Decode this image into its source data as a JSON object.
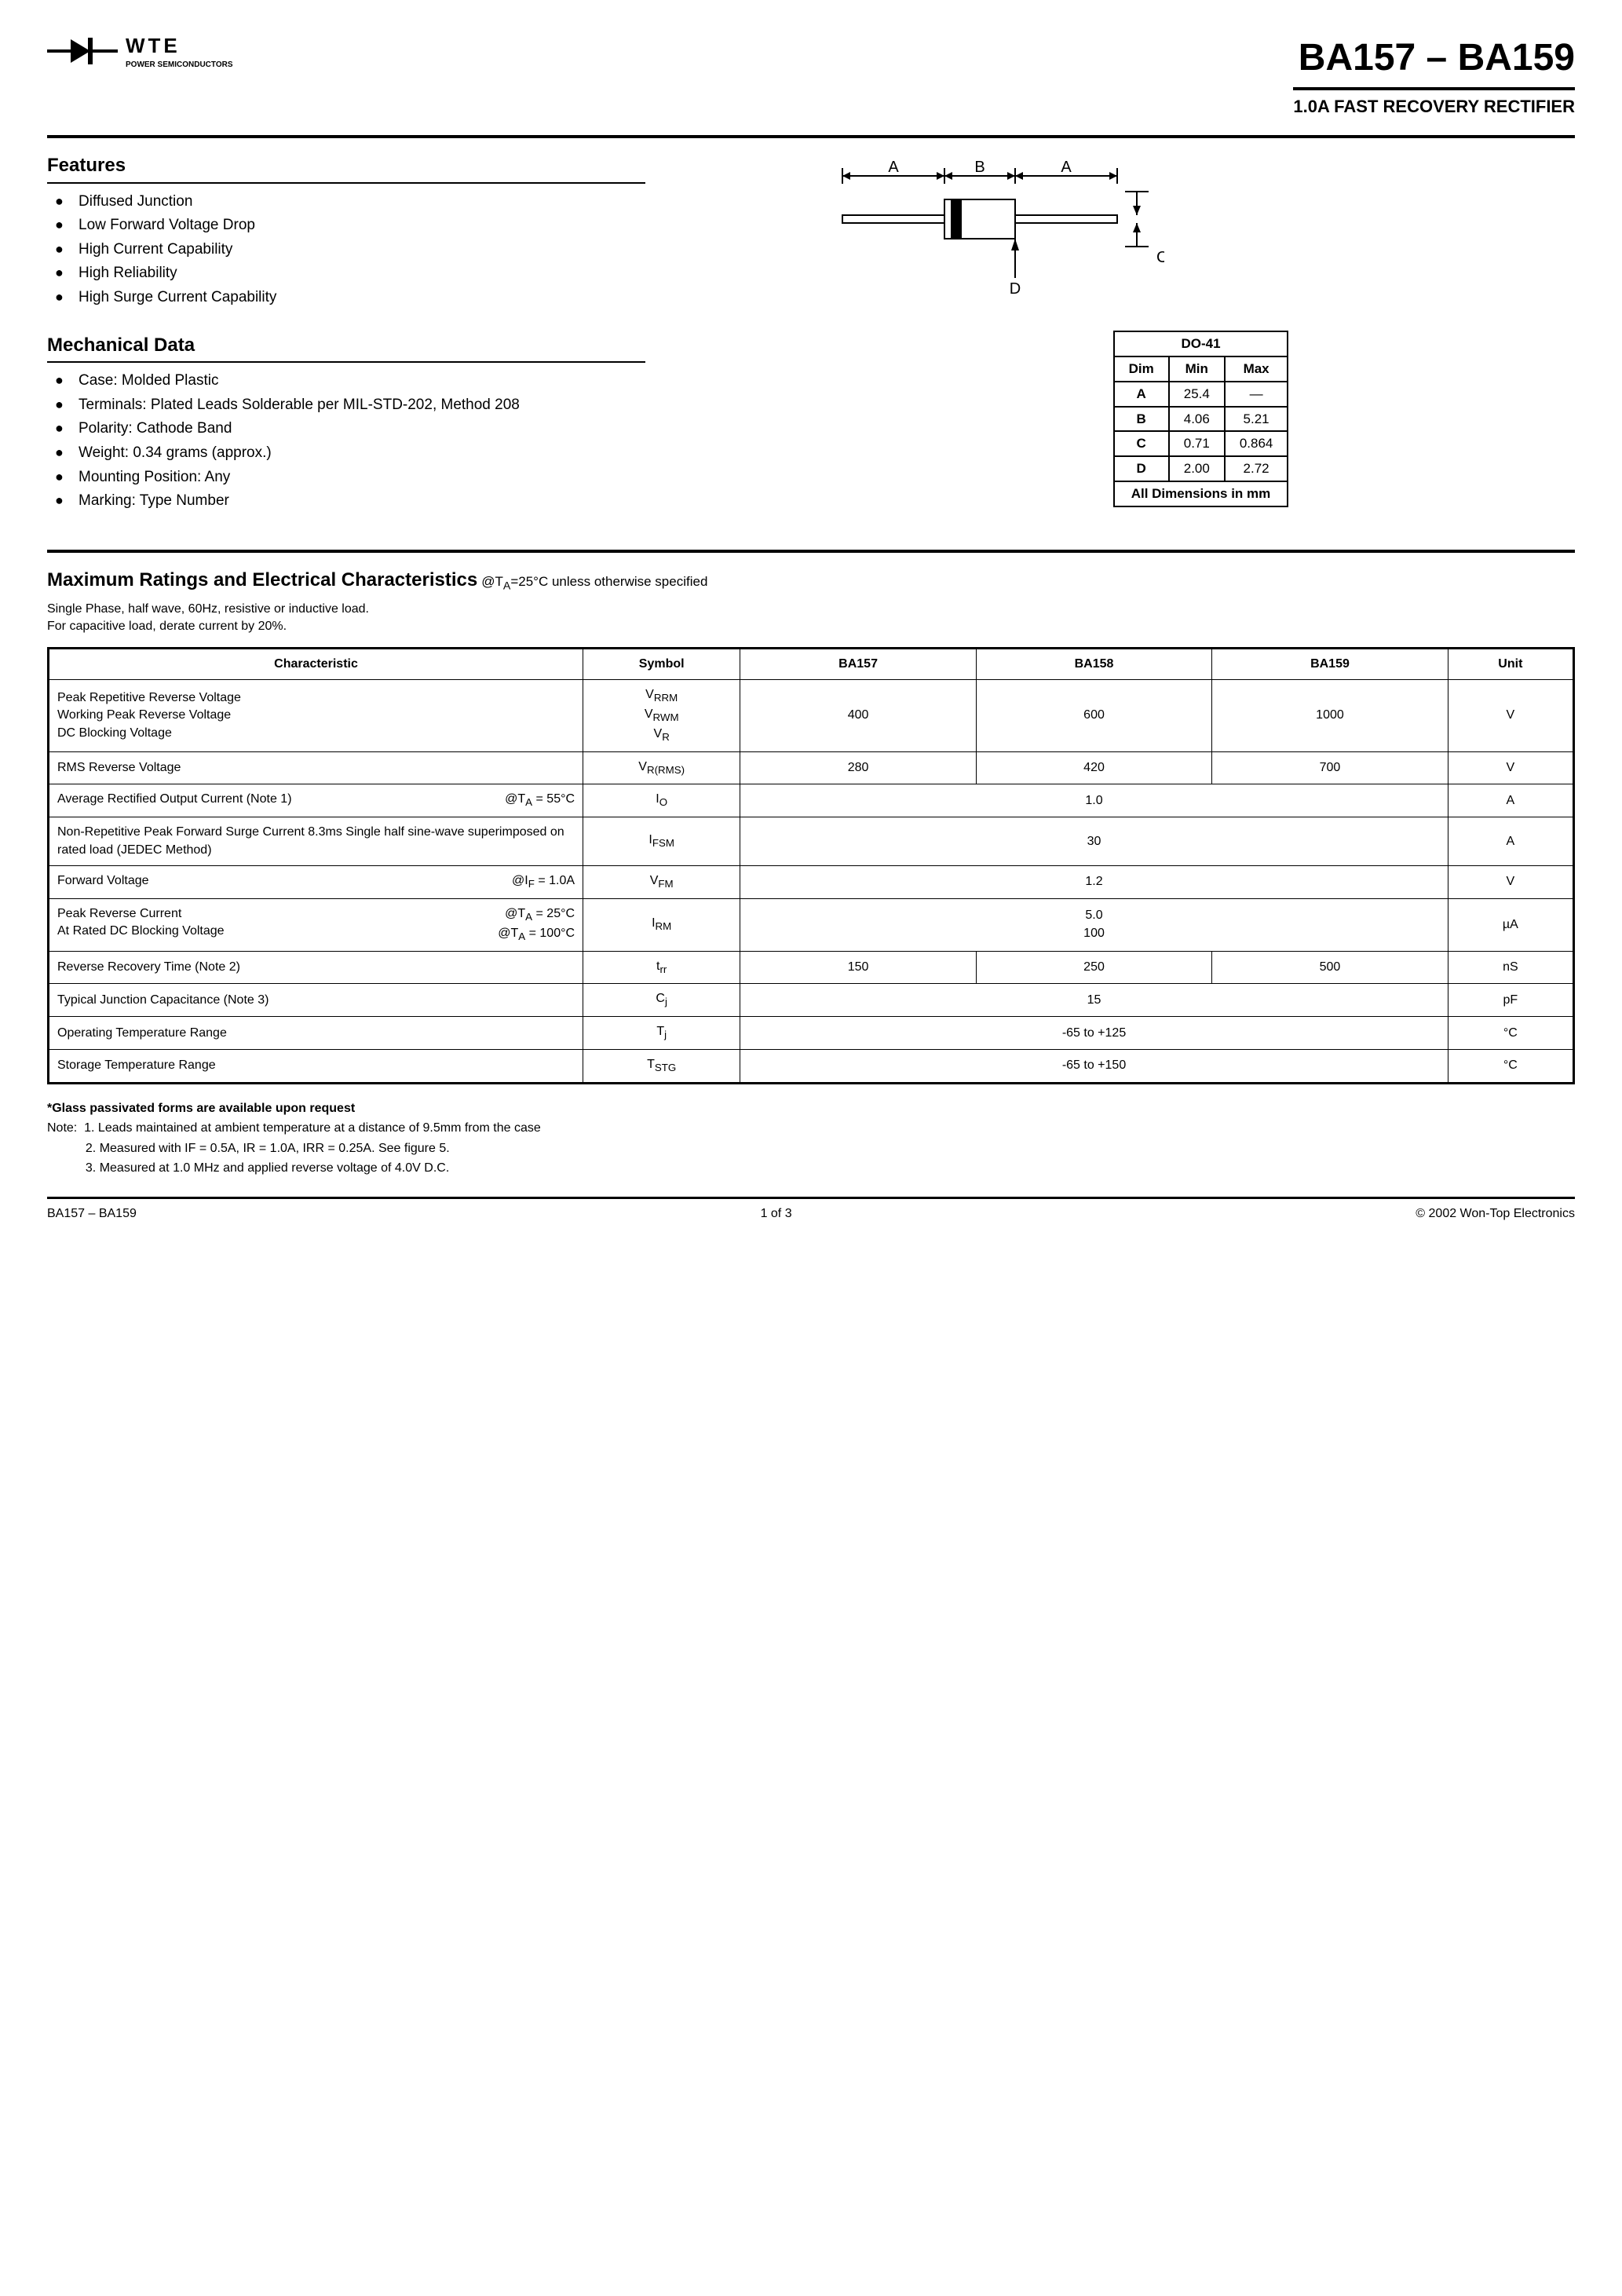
{
  "logo": {
    "brand": "WTE",
    "tagline": "POWER SEMICONDUCTORS"
  },
  "title": {
    "main": "BA157 – BA159",
    "sub": "1.0A FAST RECOVERY RECTIFIER"
  },
  "features": {
    "heading": "Features",
    "items": [
      "Diffused Junction",
      "Low Forward Voltage Drop",
      "High Current Capability",
      "High Reliability",
      "High Surge Current Capability"
    ]
  },
  "mechanical": {
    "heading": "Mechanical Data",
    "items": [
      "Case: Molded Plastic",
      "Terminals: Plated Leads Solderable per MIL-STD-202, Method 208",
      "Polarity: Cathode Band",
      "Weight: 0.34 grams (approx.)",
      "Mounting Position: Any",
      "Marking: Type Number"
    ]
  },
  "diagram": {
    "labels": {
      "A": "A",
      "B": "B",
      "C": "C",
      "D": "D"
    },
    "pkg_body_fill": "#ffffff",
    "band_fill": "#000000",
    "lead_fill": "#ffffff"
  },
  "dim_table": {
    "title": "DO-41",
    "columns": [
      "Dim",
      "Min",
      "Max"
    ],
    "rows": [
      [
        "A",
        "25.4",
        "—"
      ],
      [
        "B",
        "4.06",
        "5.21"
      ],
      [
        "C",
        "0.71",
        "0.864"
      ],
      [
        "D",
        "2.00",
        "2.72"
      ]
    ],
    "footer": "All Dimensions in mm"
  },
  "ratings": {
    "heading": "Maximum Ratings and Electrical Characteristics",
    "condition_html": "@T<sub>A</sub>=25°C unless otherwise specified",
    "note": "Single Phase, half wave, 60Hz, resistive or inductive load.\nFor capacitive load, derate current by 20%.",
    "columns": [
      "Characteristic",
      "Symbol",
      "BA157",
      "BA158",
      "BA159",
      "Unit"
    ],
    "rows": [
      {
        "char": "Peak Repetitive Reverse Voltage\nWorking Peak Reverse Voltage\nDC Blocking Voltage",
        "symbol_html": "V<sub>RRM</sub><br>V<sub>RWM</sub><br>V<sub>R</sub>",
        "v157": "400",
        "v158": "600",
        "v159": "1000",
        "unit": "V",
        "merged": false
      },
      {
        "char": "RMS Reverse Voltage",
        "symbol_html": "V<sub>R(RMS)</sub>",
        "v157": "280",
        "v158": "420",
        "v159": "700",
        "unit": "V",
        "merged": false
      },
      {
        "char": "Average Rectified Output Current (Note 1)",
        "cond_html": "@T<sub>A</sub> = 55°C",
        "symbol_html": "I<sub>O</sub>",
        "merged_val": "1.0",
        "unit": "A",
        "merged": true
      },
      {
        "char": "Non-Repetitive Peak Forward Surge Current 8.3ms Single half sine-wave superimposed on rated load (JEDEC Method)",
        "symbol_html": "I<sub>FSM</sub>",
        "merged_val": "30",
        "unit": "A",
        "merged": true
      },
      {
        "char": "Forward Voltage",
        "cond_html": "@I<sub>F</sub> = 1.0A",
        "symbol_html": "V<sub>FM</sub>",
        "merged_val": "1.2",
        "unit": "V",
        "merged": true
      },
      {
        "char": "Peak Reverse Current\nAt Rated DC Blocking Voltage",
        "cond_html": "@T<sub>A</sub> = 25°C<br>@T<sub>A</sub> = 100°C",
        "symbol_html": "I<sub>RM</sub>",
        "merged_val": "5.0\n100",
        "unit": "µA",
        "merged": true
      },
      {
        "char": "Reverse Recovery Time (Note 2)",
        "symbol_html": "t<sub>rr</sub>",
        "v157": "150",
        "v158": "250",
        "v159": "500",
        "unit": "nS",
        "merged": false
      },
      {
        "char": "Typical Junction Capacitance (Note 3)",
        "symbol_html": "C<sub>j</sub>",
        "merged_val": "15",
        "unit": "pF",
        "merged": true
      },
      {
        "char": "Operating Temperature Range",
        "symbol_html": "T<sub>j</sub>",
        "merged_val": "-65 to +125",
        "unit": "°C",
        "merged": true
      },
      {
        "char": "Storage Temperature Range",
        "symbol_html": "T<sub>STG</sub>",
        "merged_val": "-65 to +150",
        "unit": "°C",
        "merged": true
      }
    ]
  },
  "footnotes": {
    "glass": "*Glass passivated forms are available upon request",
    "notes": [
      "Note:  1. Leads maintained at ambient temperature at a distance of 9.5mm from the case",
      "           2. Measured with IF = 0.5A, IR = 1.0A, IRR = 0.25A. See figure 5.",
      "           3. Measured at 1.0 MHz and applied reverse voltage of 4.0V D.C."
    ]
  },
  "footer": {
    "left": "BA157 – BA159",
    "center": "1 of 3",
    "right": "© 2002 Won-Top Electronics"
  }
}
